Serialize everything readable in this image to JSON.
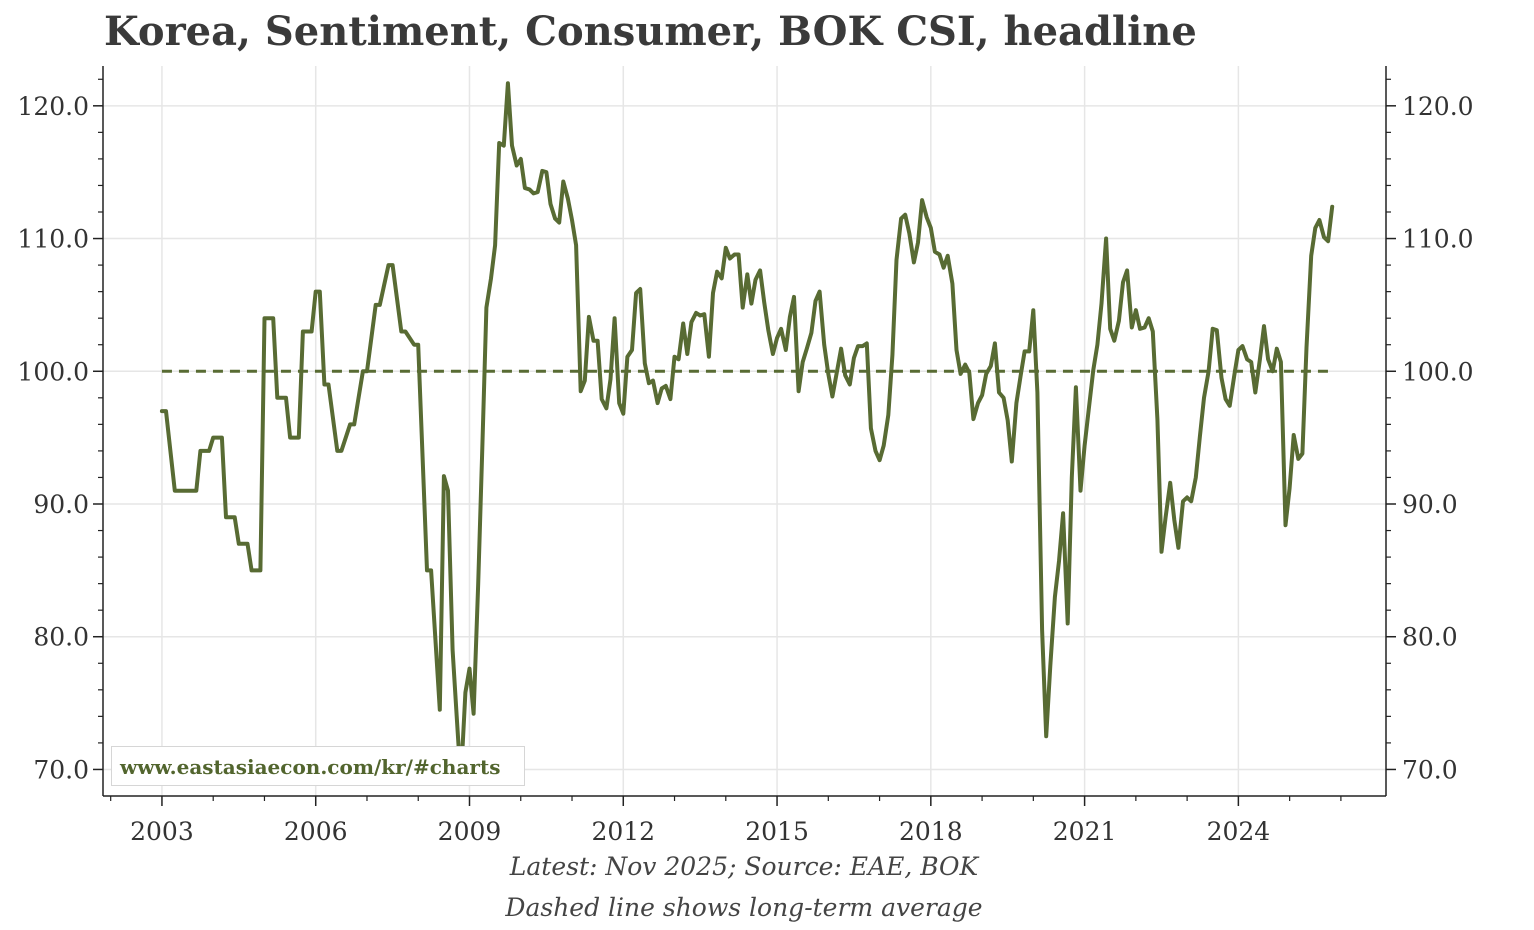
{
  "title": "Korea, Sentiment, Consumer, BOK CSI, headline",
  "watermark": "www.eastasiaecon.com/kr/#charts",
  "notes": {
    "line1": "Latest: Nov 2025; Source: EAE, BOK",
    "line2": "Dashed line shows long-term average"
  },
  "colors": {
    "series": "#586b33",
    "grid": "#e6e6e6",
    "axis": "#222222",
    "average": "#586b33"
  },
  "chart_data": {
    "type": "line",
    "title": "Korea, Sentiment, Consumer, BOK CSI, headline",
    "xlabel": "",
    "ylabel": "",
    "xlim": [
      2001.85,
      2026.88
    ],
    "ylim": [
      68.0,
      123.0
    ],
    "x_ticks": [
      2003,
      2006,
      2009,
      2012,
      2015,
      2018,
      2021,
      2024
    ],
    "x_tick_labels": [
      "2003",
      "2006",
      "2009",
      "2012",
      "2015",
      "2018",
      "2021",
      "2024"
    ],
    "y_ticks": [
      70,
      80,
      90,
      100,
      110,
      120
    ],
    "y_tick_labels": [
      "70.0",
      "80.0",
      "90.0",
      "100.0",
      "110.0",
      "120.0"
    ],
    "grid": true,
    "legend": "none",
    "average_line": {
      "value": 100,
      "x_range": [
        2003.0,
        2025.83
      ],
      "style": "dashed"
    },
    "series": [
      {
        "x": [
          2003.0,
          2003.08,
          2003.25,
          2003.67,
          2003.75,
          2003.92,
          2004.0,
          2004.17,
          2004.25,
          2004.42,
          2004.5,
          2004.67,
          2004.75,
          2004.92,
          2005.0,
          2005.17,
          2005.25,
          2005.42,
          2005.5,
          2005.67,
          2005.75,
          2005.92,
          2006.0,
          2006.08,
          2006.17,
          2006.25,
          2006.42,
          2006.5,
          2006.67,
          2006.75,
          2006.92,
          2007.0,
          2007.17,
          2007.25,
          2007.42,
          2007.5,
          2007.67,
          2007.75,
          2007.92,
          2008.0,
          2008.17,
          2008.25,
          2008.42,
          2008.5,
          2008.58,
          2008.67,
          2008.75,
          2008.83,
          2008.92,
          2009.0,
          2009.08,
          2009.17,
          2009.25,
          2009.33,
          2009.42,
          2009.5,
          2009.58,
          2009.67,
          2009.75,
          2009.83,
          2009.92,
          2010.0,
          2010.08,
          2010.17,
          2010.25,
          2010.33,
          2010.42,
          2010.5,
          2010.58,
          2010.67,
          2010.75,
          2010.83,
          2010.92,
          2011.0,
          2011.08,
          2011.17,
          2011.25,
          2011.33,
          2011.42,
          2011.5,
          2011.58,
          2011.67,
          2011.75,
          2011.83,
          2011.92,
          2012.0,
          2012.08,
          2012.17,
          2012.25,
          2012.33,
          2012.42,
          2012.5,
          2012.58,
          2012.67,
          2012.75,
          2012.83,
          2012.92,
          2013.0,
          2013.08,
          2013.17,
          2013.25,
          2013.33,
          2013.42,
          2013.5,
          2013.58,
          2013.67,
          2013.75,
          2013.83,
          2013.92,
          2014.0,
          2014.08,
          2014.17,
          2014.25,
          2014.33,
          2014.42,
          2014.5,
          2014.58,
          2014.67,
          2014.75,
          2014.83,
          2014.92,
          2015.0,
          2015.08,
          2015.17,
          2015.25,
          2015.33,
          2015.42,
          2015.5,
          2015.58,
          2015.67,
          2015.75,
          2015.83,
          2015.92,
          2016.0,
          2016.08,
          2016.17,
          2016.25,
          2016.33,
          2016.42,
          2016.5,
          2016.58,
          2016.67,
          2016.75,
          2016.83,
          2016.92,
          2017.0,
          2017.08,
          2017.17,
          2017.25,
          2017.33,
          2017.42,
          2017.5,
          2017.58,
          2017.67,
          2017.75,
          2017.83,
          2017.92,
          2018.0,
          2018.08,
          2018.17,
          2018.25,
          2018.33,
          2018.42,
          2018.5,
          2018.58,
          2018.67,
          2018.75,
          2018.83,
          2018.92,
          2019.0,
          2019.08,
          2019.17,
          2019.25,
          2019.33,
          2019.42,
          2019.5,
          2019.58,
          2019.67,
          2019.75,
          2019.83,
          2019.92,
          2020.0,
          2020.08,
          2020.17,
          2020.25,
          2020.33,
          2020.42,
          2020.5,
          2020.58,
          2020.67,
          2020.75,
          2020.83,
          2020.92,
          2021.0,
          2021.08,
          2021.17,
          2021.25,
          2021.33,
          2021.42,
          2021.5,
          2021.58,
          2021.67,
          2021.75,
          2021.83,
          2021.92,
          2022.0,
          2022.08,
          2022.17,
          2022.25,
          2022.33,
          2022.42,
          2022.5,
          2022.58,
          2022.67,
          2022.75,
          2022.83,
          2022.92,
          2023.0,
          2023.08,
          2023.17,
          2023.25,
          2023.33,
          2023.42,
          2023.5,
          2023.58,
          2023.67,
          2023.75,
          2023.83,
          2023.92,
          2024.0,
          2024.08,
          2024.17,
          2024.25,
          2024.33,
          2024.42,
          2024.5,
          2024.58,
          2024.67,
          2024.75,
          2024.83,
          2024.92,
          2025.0,
          2025.08,
          2025.17,
          2025.25,
          2025.33,
          2025.42,
          2025.5,
          2025.58,
          2025.67,
          2025.75,
          2025.83
        ],
        "values": [
          97.0,
          97.0,
          91.0,
          91.0,
          94.0,
          94.0,
          95.0,
          95.0,
          89.0,
          89.0,
          87.0,
          87.0,
          85.0,
          85.0,
          104.0,
          104.0,
          98.0,
          98.0,
          95.0,
          95.0,
          103.0,
          103.0,
          106.0,
          106.0,
          99.0,
          99.0,
          94.0,
          94.0,
          96.0,
          96.0,
          100.0,
          100.0,
          105.0,
          105.0,
          108.0,
          108.0,
          103.0,
          103.0,
          102.0,
          102.0,
          85.0,
          85.0,
          74.5,
          92.1,
          91.0,
          79.0,
          74.0,
          69.1,
          75.8,
          77.6,
          74.2,
          84.0,
          94.2,
          104.8,
          107.0,
          109.5,
          117.2,
          117.0,
          121.7,
          117.0,
          115.5,
          116.0,
          113.8,
          113.7,
          113.4,
          113.5,
          115.1,
          115.0,
          112.6,
          111.5,
          111.2,
          114.3,
          113.0,
          111.4,
          109.5,
          98.5,
          99.3,
          104.1,
          102.3,
          102.3,
          97.9,
          97.2,
          99.4,
          104.0,
          97.6,
          96.8,
          101.1,
          101.6,
          105.9,
          106.2,
          100.6,
          99.1,
          99.3,
          97.6,
          98.7,
          98.9,
          97.9,
          101.1,
          100.9,
          103.6,
          101.3,
          103.7,
          104.4,
          104.2,
          104.3,
          101.1,
          105.9,
          107.5,
          107.0,
          109.3,
          108.5,
          108.8,
          108.8,
          104.8,
          107.3,
          105.1,
          106.9,
          107.6,
          105.2,
          103.1,
          101.3,
          102.5,
          103.2,
          101.6,
          104.1,
          105.6,
          98.5,
          100.7,
          101.7,
          102.9,
          105.3,
          106.0,
          102.0,
          99.8,
          98.1,
          100.0,
          101.7,
          99.7,
          99.0,
          101.0,
          101.9,
          101.9,
          102.1,
          95.7,
          94.0,
          93.3,
          94.4,
          96.7,
          101.2,
          108.4,
          111.5,
          111.8,
          110.4,
          108.2,
          109.7,
          112.9,
          111.6,
          110.8,
          109.0,
          108.8,
          107.8,
          108.7,
          106.6,
          101.6,
          99.8,
          100.5,
          99.9,
          96.4,
          97.6,
          98.2,
          99.8,
          100.4,
          102.1,
          98.4,
          98.0,
          96.3,
          93.2,
          97.6,
          99.6,
          101.5,
          101.5,
          104.6,
          98.4,
          80.5,
          72.5,
          77.8,
          83.0,
          85.7,
          89.3,
          81.0,
          92.0,
          98.8,
          91.0,
          94.4,
          97.1,
          100.1,
          102.0,
          105.1,
          110.0,
          103.2,
          102.3,
          103.8,
          106.7,
          107.6,
          103.3,
          104.6,
          103.2,
          103.3,
          104.0,
          103.0,
          96.4,
          86.4,
          89.0,
          91.6,
          88.8,
          86.7,
          90.2,
          90.5,
          90.2,
          92.0,
          95.1,
          98.0,
          100.0,
          103.2,
          103.1,
          99.5,
          97.9,
          97.4,
          99.7,
          101.6,
          101.9,
          100.9,
          100.7,
          98.4,
          100.9,
          103.4,
          100.9,
          100.0,
          101.7,
          100.7,
          88.4,
          91.2,
          95.2,
          93.4,
          93.8,
          101.8,
          108.7,
          110.8,
          111.4,
          110.1,
          109.8,
          112.4
        ]
      }
    ]
  }
}
